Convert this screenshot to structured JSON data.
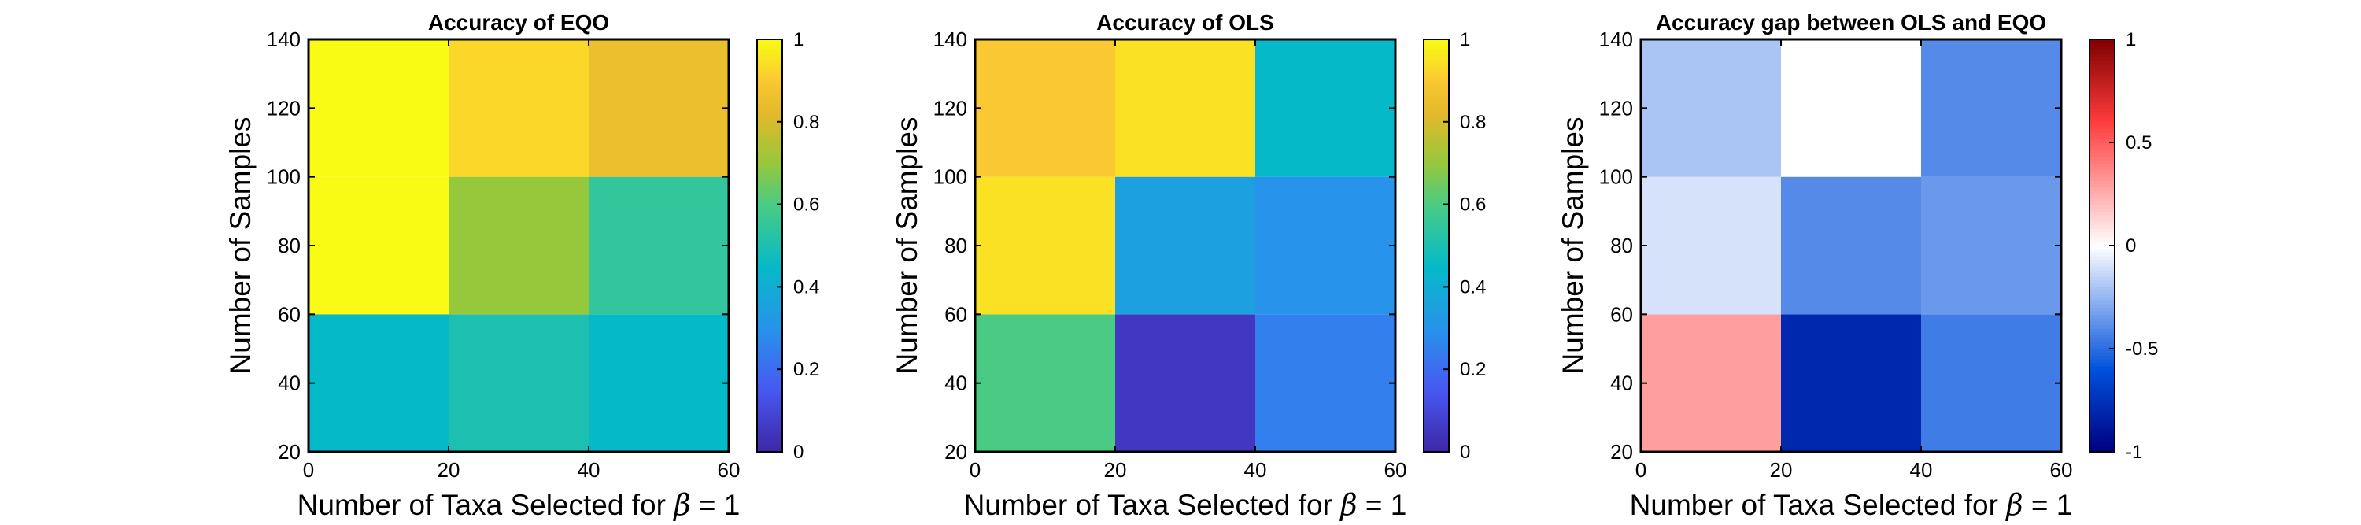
{
  "chart_data": [
    {
      "type": "heatmap",
      "title": "Accuracy of EQO",
      "xlabel": "Number of Taxa Selected for",
      "xlabel_symbol": "β",
      "xlabel_suffix": " = 1",
      "ylabel": "Number of Samples",
      "x_edges": [
        0,
        20,
        40,
        60
      ],
      "y_edges": [
        20,
        60,
        100,
        140
      ],
      "xticks": [
        "0",
        "20",
        "40",
        "60"
      ],
      "yticks": [
        "20",
        "40",
        "60",
        "80",
        "100",
        "120",
        "140"
      ],
      "xlim": [
        0,
        60
      ],
      "ylim": [
        20,
        140
      ],
      "values": [
        [
          0.45,
          0.5,
          0.45
        ],
        [
          1.0,
          0.7,
          0.55
        ],
        [
          1.0,
          0.93,
          0.85
        ]
      ],
      "colormap": "parula",
      "clim": [
        0,
        1
      ],
      "colorbar_ticks": [
        "0",
        "0.2",
        "0.4",
        "0.6",
        "0.8",
        "1"
      ]
    },
    {
      "type": "heatmap",
      "title": "Accuracy of OLS",
      "xlabel": "Number of Taxa Selected for",
      "xlabel_symbol": "β",
      "xlabel_suffix": " = 1",
      "ylabel": "Number of Samples",
      "x_edges": [
        0,
        20,
        40,
        60
      ],
      "y_edges": [
        20,
        60,
        100,
        140
      ],
      "xticks": [
        "0",
        "20",
        "40",
        "60"
      ],
      "yticks": [
        "20",
        "40",
        "60",
        "80",
        "100",
        "120",
        "140"
      ],
      "xlim": [
        0,
        60
      ],
      "ylim": [
        20,
        140
      ],
      "values": [
        [
          0.6,
          0.05,
          0.25
        ],
        [
          0.95,
          0.35,
          0.3
        ],
        [
          0.9,
          0.95,
          0.45
        ]
      ],
      "colormap": "parula",
      "clim": [
        0,
        1
      ],
      "colorbar_ticks": [
        "0",
        "0.2",
        "0.4",
        "0.6",
        "0.8",
        "1"
      ]
    },
    {
      "type": "heatmap",
      "title": "Accuracy gap between OLS and EQO",
      "xlabel": "Number of Taxa Selected for",
      "xlabel_symbol": "β",
      "xlabel_suffix": " = 1",
      "ylabel": "Number of Samples",
      "x_edges": [
        0,
        20,
        40,
        60
      ],
      "y_edges": [
        20,
        60,
        100,
        140
      ],
      "xticks": [
        "0",
        "20",
        "40",
        "60"
      ],
      "yticks": [
        "20",
        "40",
        "60",
        "80",
        "100",
        "120",
        "140"
      ],
      "xlim": [
        0,
        60
      ],
      "ylim": [
        20,
        140
      ],
      "values": [
        [
          0.3,
          -0.8,
          -0.45
        ],
        [
          -0.1,
          -0.4,
          -0.35
        ],
        [
          -0.2,
          0.0,
          -0.4
        ]
      ],
      "colormap": "diverging blue-white-red",
      "clim": [
        -1,
        1
      ],
      "colorbar_ticks": [
        "-1",
        "-0.5",
        "0",
        "0.5",
        "1"
      ]
    }
  ]
}
